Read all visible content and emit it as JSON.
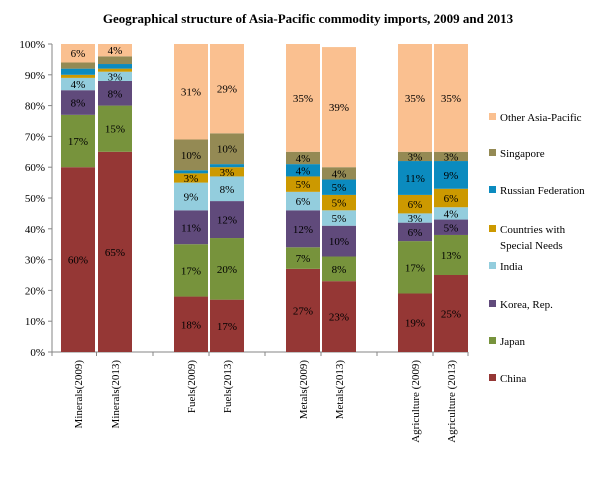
{
  "chart_data": {
    "type": "bar",
    "stacked": true,
    "title": "Geographical structure of Asia-Pacific commodity imports, 2009 and 2013",
    "categories": [
      "Minerals(2009)",
      "Minerals(2013)",
      "Fuels(2009)",
      "Fuels(2013)",
      "Metals(2009)",
      "Metals(2013)",
      "Agriculture (2009)",
      "Agriculture (2013)"
    ],
    "ylim": [
      0,
      100
    ],
    "yticks": [
      "0%",
      "10%",
      "20%",
      "30%",
      "40%",
      "50%",
      "60%",
      "70%",
      "80%",
      "90%",
      "100%"
    ],
    "legend_position": "right",
    "series": [
      {
        "name": "China",
        "color": "#953735",
        "values": [
          60,
          65,
          18,
          17,
          27,
          23,
          19,
          25
        ],
        "labels": [
          "60%",
          "65%",
          "18%",
          "17%",
          "27%",
          "23%",
          "19%",
          "25%"
        ]
      },
      {
        "name": "Japan",
        "color": "#77933C",
        "values": [
          17,
          15,
          17,
          20,
          7,
          8,
          17,
          13
        ],
        "labels": [
          "17%",
          "15%",
          "17%",
          "20%",
          "7%",
          "8%",
          "17%",
          "13%"
        ]
      },
      {
        "name": "Korea, Rep.",
        "color": "#604A7B",
        "values": [
          8,
          8,
          11,
          12,
          12,
          10,
          6,
          5
        ],
        "labels": [
          "8%",
          "8%",
          "11%",
          "12%",
          "12%",
          "10%",
          "6%",
          "5%"
        ]
      },
      {
        "name": "India",
        "color": "#93CDDD",
        "values": [
          4,
          3,
          9,
          8,
          6,
          5,
          3,
          4
        ],
        "labels": [
          "4%",
          "3%",
          "9%",
          "8%",
          "6%",
          "5%",
          "3%",
          "4%"
        ]
      },
      {
        "name": "Countries with Special Needs",
        "color": "#CC9900",
        "values": [
          1,
          1,
          3,
          3,
          5,
          5,
          6,
          6
        ],
        "labels": [
          "",
          "",
          "3%",
          "3%",
          "5%",
          "5%",
          "6%",
          "6%"
        ]
      },
      {
        "name": "Russian Federation",
        "color": "#0B8BBF",
        "values": [
          2,
          1.5,
          1,
          1,
          4,
          5,
          11,
          9
        ],
        "labels": [
          "",
          "",
          "",
          "",
          "4%",
          "5%",
          "11%",
          "9%"
        ]
      },
      {
        "name": "Singapore",
        "color": "#948A54",
        "values": [
          2,
          2.5,
          10,
          10,
          4,
          4,
          3,
          3
        ],
        "labels": [
          "",
          "",
          "10%",
          "10%",
          "4%",
          "4%",
          "3%",
          "3%"
        ]
      },
      {
        "name": "Other Asia-Pacific",
        "color": "#FAC090",
        "values": [
          6,
          4,
          31,
          29,
          35,
          39,
          35,
          35
        ],
        "labels": [
          "6%",
          "4%",
          "31%",
          "29%",
          "35%",
          "39%",
          "35%",
          "35%"
        ]
      }
    ],
    "legend": [
      {
        "name": "Other Asia-Pacific",
        "lines": [
          "Other Asia-Pacific"
        ],
        "color": "#FAC090"
      },
      {
        "name": "Singapore",
        "lines": [
          "Singapore"
        ],
        "color": "#948A54"
      },
      {
        "name": "Russian Federation",
        "lines": [
          "Russian Federation"
        ],
        "color": "#0B8BBF"
      },
      {
        "name": "Countries with Special Needs",
        "lines": [
          "Countries with",
          "Special Needs"
        ],
        "color": "#CC9900"
      },
      {
        "name": "India",
        "lines": [
          "India"
        ],
        "color": "#93CDDD"
      },
      {
        "name": "Korea, Rep.",
        "lines": [
          "Korea, Rep."
        ],
        "color": "#604A7B"
      },
      {
        "name": "Japan",
        "lines": [
          "Japan"
        ],
        "color": "#77933C"
      },
      {
        "name": "China",
        "lines": [
          "China"
        ],
        "color": "#953735"
      }
    ]
  }
}
